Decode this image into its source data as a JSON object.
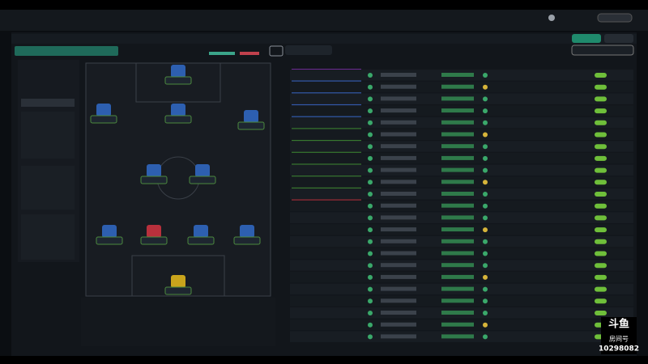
{
  "watermark": {
    "logo": "斗鱼",
    "room_label": "房间号",
    "room_number": "10298082"
  }
}
